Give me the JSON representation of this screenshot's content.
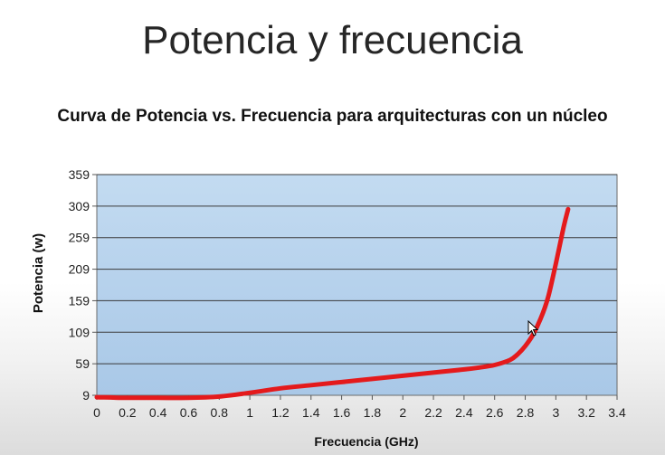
{
  "slide": {
    "title": "Potencia y frecuencia"
  },
  "chart_data": {
    "type": "line",
    "title": "Curva de Potencia vs. Frecuencia para arquitecturas con un núcleo",
    "xlabel": "Frecuencia (GHz)",
    "ylabel": "Potencia (w)",
    "xlim": [
      0,
      3.4
    ],
    "ylim": [
      9,
      359
    ],
    "xticks": [
      "0",
      "0.2",
      "0.4",
      "0.6",
      "0.8",
      "1",
      "1.2",
      "1.4",
      "1.6",
      "1.8",
      "2",
      "2.2",
      "2.4",
      "2.6",
      "2.8",
      "3",
      "3.2",
      "3.4"
    ],
    "yticks": [
      "9",
      "59",
      "109",
      "159",
      "209",
      "259",
      "309",
      "359"
    ],
    "grid": true,
    "legend": "none",
    "plot_background": "#b9d3ec",
    "series": [
      {
        "color": "#e41a1c",
        "x": [
          0,
          0.2,
          0.4,
          0.6,
          0.8,
          1.0,
          1.2,
          1.4,
          1.6,
          1.8,
          2.0,
          2.2,
          2.4,
          2.5,
          2.6,
          2.7,
          2.75,
          2.8,
          2.85,
          2.9,
          2.95,
          3.0,
          3.05,
          3.08
        ],
        "y": [
          6,
          5,
          5,
          5,
          7,
          13,
          20,
          25,
          30,
          35,
          40,
          45,
          50,
          53,
          57,
          65,
          74,
          87,
          105,
          130,
          165,
          218,
          275,
          304
        ]
      }
    ]
  }
}
